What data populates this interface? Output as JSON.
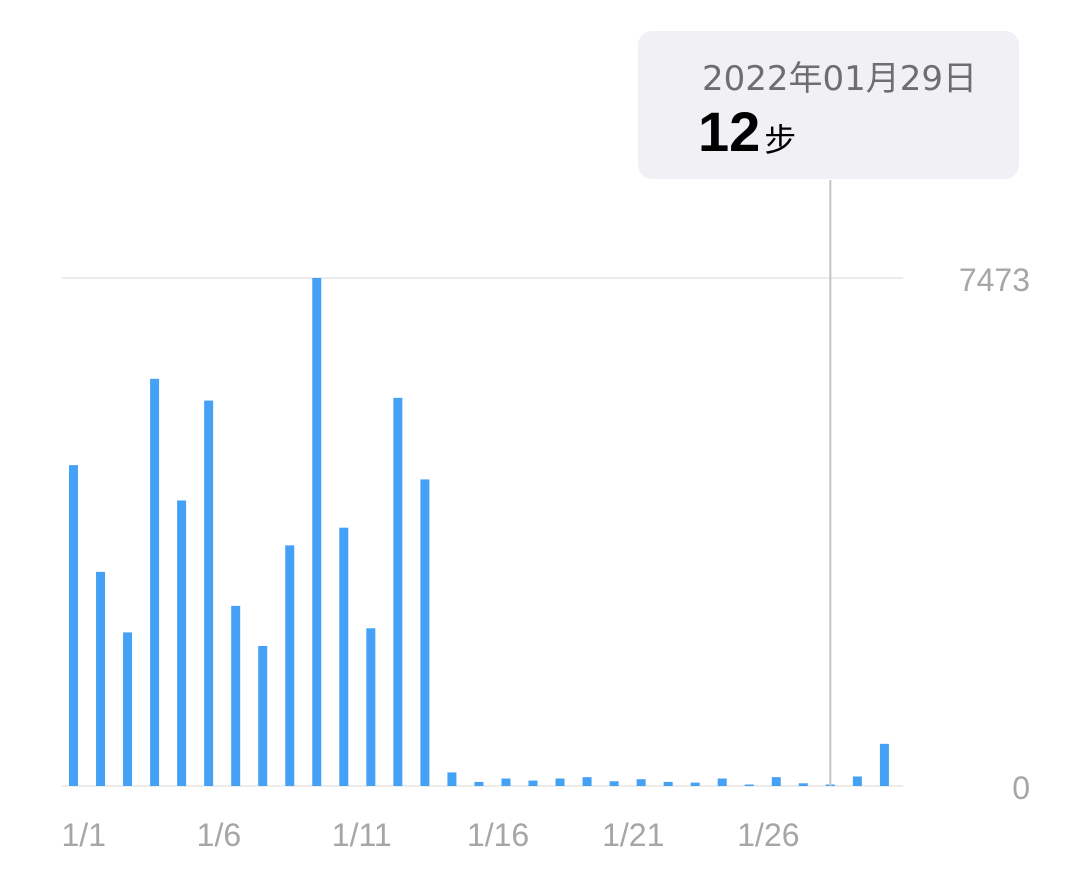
{
  "tooltip": {
    "date": "2022年01月29日",
    "value": "12",
    "unit": "步"
  },
  "chart_data": {
    "type": "bar",
    "title": "",
    "xlabel": "",
    "ylabel": "",
    "categories": [
      "1/1",
      "1/2",
      "1/3",
      "1/4",
      "1/5",
      "1/6",
      "1/7",
      "1/8",
      "1/9",
      "1/10",
      "1/11",
      "1/12",
      "1/13",
      "1/14",
      "1/15",
      "1/16",
      "1/17",
      "1/18",
      "1/19",
      "1/20",
      "1/21",
      "1/22",
      "1/23",
      "1/24",
      "1/25",
      "1/26",
      "1/27",
      "1/28",
      "1/29",
      "1/30",
      "1/31"
    ],
    "x_tick_labels": [
      "1/1",
      "1/6",
      "1/11",
      "1/16",
      "1/21",
      "1/26"
    ],
    "x_tick_indices": [
      0,
      5,
      10,
      15,
      20,
      25
    ],
    "values": [
      4720,
      3150,
      2260,
      5990,
      4200,
      5670,
      2650,
      2060,
      3540,
      7473,
      3800,
      2320,
      5710,
      4510,
      200,
      60,
      110,
      80,
      110,
      130,
      70,
      100,
      60,
      50,
      110,
      20,
      130,
      40,
      12,
      140,
      620
    ],
    "y_ticks": [
      0,
      7473
    ],
    "ylim": [
      0,
      7473
    ],
    "selected_index": 28,
    "grid": true,
    "bar_color": "#45a1f5"
  }
}
